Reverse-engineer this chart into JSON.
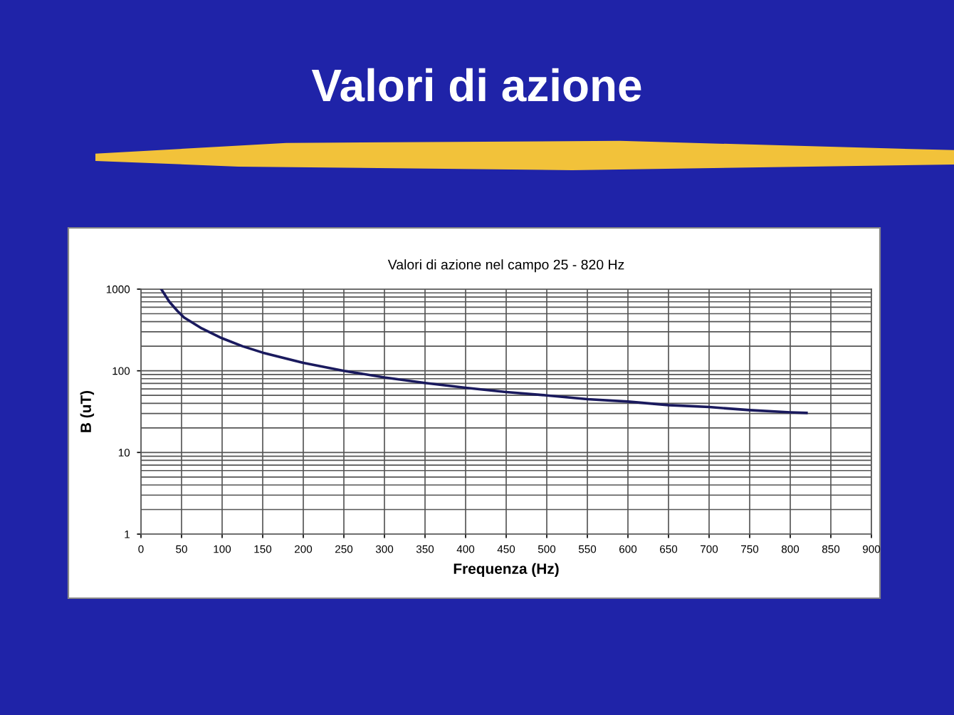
{
  "chart_data": {
    "type": "line",
    "title": "Valori di azione",
    "subtitle": "Valori di azione nel campo 25 - 820 Hz",
    "xlabel": "Frequenza (Hz)",
    "ylabel": "B (uT)",
    "x": [
      25,
      35,
      45,
      53,
      75,
      100,
      125,
      150,
      200,
      250,
      300,
      350,
      400,
      450,
      500,
      550,
      600,
      650,
      700,
      750,
      800,
      820
    ],
    "series": [
      {
        "color": "#1a1a5e",
        "values": [
          1000,
          700,
          540,
          450,
          330,
          250,
          200,
          167,
          125,
          100,
          83,
          71,
          62,
          55,
          50,
          45,
          42,
          38,
          36,
          33,
          31,
          30.5
        ]
      }
    ],
    "xlim": [
      0,
      900
    ],
    "xticks": [
      0,
      50,
      100,
      150,
      200,
      250,
      300,
      350,
      400,
      450,
      500,
      550,
      600,
      650,
      700,
      750,
      800,
      850,
      900
    ],
    "ylim": [
      1,
      1000
    ],
    "yticks": [
      1,
      10,
      100,
      1000
    ],
    "log": "y",
    "grid": true,
    "legend": false,
    "marker": "none",
    "line_style": "solid"
  }
}
